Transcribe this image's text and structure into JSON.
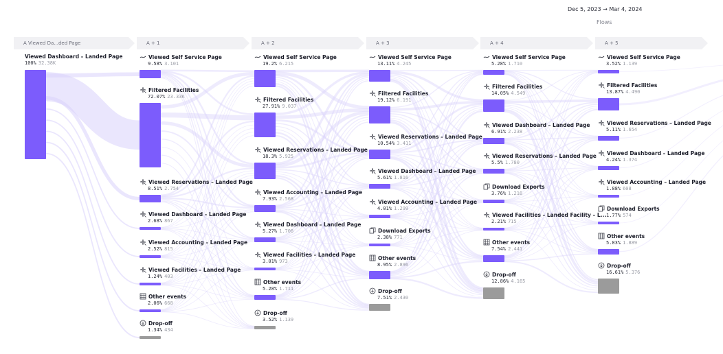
{
  "header": {
    "date_range": "Dec 5, 2023 → Mar 4, 2024",
    "view_label": "Flows"
  },
  "colors": {
    "bar": "#7c5cfc",
    "dropoff": "#9b9b9b",
    "link": "#d9d2fb",
    "tab_bg": "#f1f1f4"
  },
  "stages": [
    {
      "tab": "A  Viewed Da...ded Page",
      "nodes": [
        {
          "name": "Viewed Dashboard – Landed Page",
          "pct": "100%",
          "count": "32.38K",
          "icon": "",
          "fraction": 1.0
        }
      ]
    },
    {
      "tab": "A + 1",
      "nodes": [
        {
          "name": "Viewed Self Service Page",
          "pct": "9.58%",
          "count": "3.101",
          "icon": "route-icon",
          "fraction": 0.0958
        },
        {
          "name": "Filtered Facilities",
          "pct": "72.07%",
          "count": "23.33K",
          "icon": "sparkle-icon",
          "fraction": 0.7207
        },
        {
          "name": "Viewed Reservations – Landed Page",
          "pct": "8.51%",
          "count": "2.754",
          "icon": "sparkle-icon",
          "fraction": 0.0851
        },
        {
          "name": "Viewed Dashboard – Landed Page",
          "pct": "2.68%",
          "count": "867",
          "icon": "sparkle-icon",
          "fraction": 0.0268
        },
        {
          "name": "Viewed Accounting – Landed Page",
          "pct": "2.52%",
          "count": "815",
          "icon": "sparkle-icon",
          "fraction": 0.0252
        },
        {
          "name": "Viewed Facilities – Landed Page",
          "pct": "1.24%",
          "count": "403",
          "icon": "sparkle-icon",
          "fraction": 0.0124
        },
        {
          "name": "Other events",
          "pct": "2.06%",
          "count": "668",
          "icon": "grid-icon",
          "fraction": 0.0206
        },
        {
          "name": "Drop-off",
          "pct": "1.34%",
          "count": "434",
          "icon": "dropoff-icon",
          "fraction": 0.0134
        }
      ]
    },
    {
      "tab": "A + 2",
      "nodes": [
        {
          "name": "Viewed Self Service Page",
          "pct": "19.2%",
          "count": "6.215",
          "icon": "route-icon",
          "fraction": 0.192
        },
        {
          "name": "Filtered Facilities",
          "pct": "27.91%",
          "count": "9.037",
          "icon": "sparkle-icon",
          "fraction": 0.2791
        },
        {
          "name": "Viewed Reservations – Landed Page",
          "pct": "18.3%",
          "count": "5.925",
          "icon": "sparkle-icon",
          "fraction": 0.183
        },
        {
          "name": "Viewed Accounting – Landed Page",
          "pct": "7.93%",
          "count": "2.568",
          "icon": "sparkle-icon",
          "fraction": 0.0793
        },
        {
          "name": "Viewed Dashboard – Landed Page",
          "pct": "5.27%",
          "count": "1.706",
          "icon": "sparkle-icon",
          "fraction": 0.0527
        },
        {
          "name": "Viewed Facilities – Landed Page",
          "pct": "3.01%",
          "count": "973",
          "icon": "sparkle-icon",
          "fraction": 0.0301
        },
        {
          "name": "Other events",
          "pct": "5.28%",
          "count": "1.711",
          "icon": "grid-icon",
          "fraction": 0.0528
        },
        {
          "name": "Drop-off",
          "pct": "3.52%",
          "count": "1.139",
          "icon": "dropoff-icon",
          "fraction": 0.0352
        }
      ]
    },
    {
      "tab": "A + 3",
      "nodes": [
        {
          "name": "Viewed Self Service Page",
          "pct": "13.11%",
          "count": "4.245",
          "icon": "route-icon",
          "fraction": 0.1311
        },
        {
          "name": "Filtered Facilities",
          "pct": "19.12%",
          "count": "6.191",
          "icon": "sparkle-icon",
          "fraction": 0.1912
        },
        {
          "name": "Viewed Reservations – Landed Page",
          "pct": "10.54%",
          "count": "3.411",
          "icon": "sparkle-icon",
          "fraction": 0.1054
        },
        {
          "name": "Viewed Dashboard – Landed Page",
          "pct": "5.61%",
          "count": "1.816",
          "icon": "sparkle-icon",
          "fraction": 0.0561
        },
        {
          "name": "Viewed Accounting – Landed Page",
          "pct": "4.01%",
          "count": "1.299",
          "icon": "sparkle-icon",
          "fraction": 0.0401
        },
        {
          "name": "Download Exports",
          "pct": "2.38%",
          "count": "771",
          "icon": "copy-icon",
          "fraction": 0.0238
        },
        {
          "name": "Other events",
          "pct": "8.95%",
          "count": "2.896",
          "icon": "grid-icon",
          "fraction": 0.0895
        },
        {
          "name": "Drop-off",
          "pct": "7.51%",
          "count": "2.430",
          "icon": "dropoff-icon",
          "fraction": 0.0751
        }
      ]
    },
    {
      "tab": "A + 4",
      "nodes": [
        {
          "name": "Viewed Self Service Page",
          "pct": "5.28%",
          "count": "1.710",
          "icon": "route-icon",
          "fraction": 0.0528
        },
        {
          "name": "Filtered Facilities",
          "pct": "14.05%",
          "count": "4.549",
          "icon": "sparkle-icon",
          "fraction": 0.1405
        },
        {
          "name": "Viewed Dashboard – Landed Page",
          "pct": "6.91%",
          "count": "2.238",
          "icon": "sparkle-icon",
          "fraction": 0.0691
        },
        {
          "name": "Viewed Reservations – Landed Page",
          "pct": "5.5%",
          "count": "1.780",
          "icon": "sparkle-icon",
          "fraction": 0.055
        },
        {
          "name": "Download Exports",
          "pct": "3.76%",
          "count": "1.216",
          "icon": "copy-icon",
          "fraction": 0.0376
        },
        {
          "name": "Viewed Facilities – Landed Facility – L...",
          "pct": "2.21%",
          "count": "715",
          "icon": "sparkle-icon",
          "fraction": 0.0221
        },
        {
          "name": "Other events",
          "pct": "7.54%",
          "count": "2.441",
          "icon": "grid-icon",
          "fraction": 0.0754
        },
        {
          "name": "Drop-off",
          "pct": "12.86%",
          "count": "4.165",
          "icon": "dropoff-icon",
          "fraction": 0.1286
        }
      ]
    },
    {
      "tab": "A + 5",
      "nodes": [
        {
          "name": "Viewed Self Service Page",
          "pct": "3.52%",
          "count": "1.139",
          "icon": "route-icon",
          "fraction": 0.0352
        },
        {
          "name": "Filtered Facilities",
          "pct": "13.87%",
          "count": "4.490",
          "icon": "sparkle-icon",
          "fraction": 0.1387
        },
        {
          "name": "Viewed Reservations – Landed Page",
          "pct": "5.11%",
          "count": "1.654",
          "icon": "sparkle-icon",
          "fraction": 0.0511
        },
        {
          "name": "Viewed Dashboard – Landed Page",
          "pct": "4.24%",
          "count": "1.374",
          "icon": "sparkle-icon",
          "fraction": 0.0424
        },
        {
          "name": "Viewed Accounting – Landed Page",
          "pct": "1.88%",
          "count": "608",
          "icon": "sparkle-icon",
          "fraction": 0.0188
        },
        {
          "name": "Download Exports",
          "pct": "1.77%",
          "count": "574",
          "icon": "copy-icon",
          "fraction": 0.0177
        },
        {
          "name": "Other events",
          "pct": "5.83%",
          "count": "1.889",
          "icon": "grid-icon",
          "fraction": 0.0583
        },
        {
          "name": "Drop-off",
          "pct": "16.61%",
          "count": "5.376",
          "icon": "dropoff-icon",
          "fraction": 0.1661
        }
      ]
    }
  ]
}
